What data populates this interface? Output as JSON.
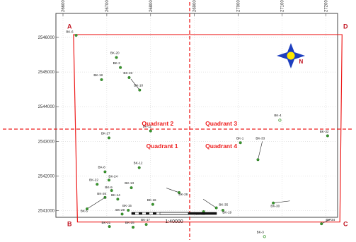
{
  "colors": {
    "boundary": "#ee1c1c",
    "well": "#3a9a2e",
    "frame": "#444444",
    "compass_blue": "#1e3fbf",
    "compass_yellow": "#ffe800"
  },
  "map": {
    "x_ticks": [
      {
        "value": 266000,
        "label": "266000"
      },
      {
        "value": 267000,
        "label": "267000"
      },
      {
        "value": 268000,
        "label": "268000"
      },
      {
        "value": 269000,
        "label": "269000"
      },
      {
        "value": 270000,
        "label": "270000"
      },
      {
        "value": 271000,
        "label": "271000"
      },
      {
        "value": 272000,
        "label": "272000"
      }
    ],
    "y_ticks": [
      {
        "value": 2541000,
        "label": "2541000"
      },
      {
        "value": 2542000,
        "label": "2542000"
      },
      {
        "value": 2543000,
        "label": "2543000"
      },
      {
        "value": 2544000,
        "label": "2544000"
      },
      {
        "value": 2545000,
        "label": "2545000"
      },
      {
        "value": 2546000,
        "label": "2546000"
      }
    ],
    "corners": [
      {
        "label": "A",
        "x": 266150,
        "y": 2546250
      },
      {
        "label": "B",
        "x": 266150,
        "y": 2540550
      },
      {
        "label": "C",
        "x": 272450,
        "y": 2540550
      },
      {
        "label": "D",
        "x": 272450,
        "y": 2546250
      }
    ],
    "boundary": [
      [
        266240,
        2546080
      ],
      [
        272370,
        2546080
      ],
      [
        272320,
        2540670
      ],
      [
        266330,
        2540670
      ]
    ],
    "quadrants": [
      {
        "label": "Quadrant 2",
        "x": 267800,
        "y": 2543450
      },
      {
        "label": "Quadrant 3",
        "x": 269250,
        "y": 2543450
      },
      {
        "label": "Quadrant 1",
        "x": 267900,
        "y": 2542800
      },
      {
        "label": "Quadrant 4",
        "x": 269250,
        "y": 2542800
      }
    ],
    "compass": {
      "label": "N",
      "x": 271450,
      "y": 2545250
    },
    "scale_label": "1:40000",
    "wells": [
      {
        "label": "BK-6",
        "x": 266300,
        "y": 2546060,
        "lx": 266070,
        "ly": 2546130
      },
      {
        "label": "BK-20",
        "x": 267220,
        "y": 2545420,
        "lx": 267080,
        "ly": 2545520
      },
      {
        "label": "BK-2",
        "x": 267310,
        "y": 2545130,
        "lx": 267140,
        "ly": 2545230
      },
      {
        "label": "BK-23",
        "x": 267510,
        "y": 2544840,
        "lx": 267380,
        "ly": 2544940
      },
      {
        "label": "BK-18",
        "x": 266880,
        "y": 2544780,
        "lx": 266700,
        "ly": 2544880
      },
      {
        "label": "BK-10",
        "x": 267750,
        "y": 2544480,
        "lx": 267620,
        "ly": 2544580,
        "line": [
          267550,
          2544800
        ]
      },
      {
        "label": "BK-11",
        "x": 268000,
        "y": 2543300,
        "lx": 267820,
        "ly": 2543400
      },
      {
        "label": "BK-27",
        "x": 267050,
        "y": 2543100,
        "lx": 266870,
        "ly": 2543200
      },
      {
        "label": "BK-4",
        "x": 270950,
        "y": 2543610,
        "lx": 270820,
        "ly": 2543720,
        "hollow": true
      },
      {
        "label": "BK-32",
        "x": 272040,
        "y": 2543160,
        "lx": 271860,
        "ly": 2543250
      },
      {
        "label": "BK-1",
        "x": 270050,
        "y": 2542960,
        "lx": 269960,
        "ly": 2543060
      },
      {
        "label": "BK-33",
        "x": 270450,
        "y": 2542470,
        "lx": 270400,
        "ly": 2543060,
        "line": [
          270550,
          2543000
        ]
      },
      {
        "label": "BK-8",
        "x": 266960,
        "y": 2542120,
        "lx": 266800,
        "ly": 2542220
      },
      {
        "label": "BK-24",
        "x": 267050,
        "y": 2541880,
        "lx": 267040,
        "ly": 2541960
      },
      {
        "label": "BK-22",
        "x": 266780,
        "y": 2541760,
        "lx": 266600,
        "ly": 2541860
      },
      {
        "label": "BK-9",
        "x": 267110,
        "y": 2541580,
        "lx": 266960,
        "ly": 2541640
      },
      {
        "label": "BK-13",
        "x": 267560,
        "y": 2541660,
        "lx": 267410,
        "ly": 2541760
      },
      {
        "label": "BK-12",
        "x": 267740,
        "y": 2542240,
        "lx": 267610,
        "ly": 2542340
      },
      {
        "label": "BK-26",
        "x": 266960,
        "y": 2541380,
        "lx": 266780,
        "ly": 2541460
      },
      {
        "label": "BK-14",
        "x": 267250,
        "y": 2541330,
        "lx": 267100,
        "ly": 2541420
      },
      {
        "label": "BK-16",
        "x": 268050,
        "y": 2541180,
        "lx": 267920,
        "ly": 2541270
      },
      {
        "label": "BK-28",
        "x": 268650,
        "y": 2541520,
        "lx": 268640,
        "ly": 2541440,
        "line": [
          268360,
          2541650
        ]
      },
      {
        "label": "BK-5",
        "x": 266550,
        "y": 2541050,
        "lx": 266400,
        "ly": 2540960,
        "line": [
          266960,
          2541380
        ]
      },
      {
        "label": "BK-29",
        "x": 267350,
        "y": 2540900,
        "lx": 267200,
        "ly": 2540990
      },
      {
        "label": "BK-15",
        "x": 267490,
        "y": 2541010,
        "lx": 267360,
        "ly": 2541110
      },
      {
        "label": "BK-17",
        "x": 267900,
        "y": 2540600,
        "lx": 267780,
        "ly": 2540700
      },
      {
        "label": "BK-21",
        "x": 267060,
        "y": 2540540,
        "lx": 266880,
        "ly": 2540620
      },
      {
        "label": "BK-25",
        "x": 267600,
        "y": 2540520,
        "lx": 267420,
        "ly": 2540620
      },
      {
        "label": "BK-35",
        "x": 269500,
        "y": 2541080,
        "lx": 269560,
        "ly": 2541140,
        "line": [
          269200,
          2541330
        ]
      },
      {
        "label": "BK-31",
        "x": 269210,
        "y": 2540970,
        "lx": 269030,
        "ly": 2540880
      },
      {
        "label": "BK-19",
        "x": 269650,
        "y": 2541010,
        "lx": 269640,
        "ly": 2540920
      },
      {
        "label": "BK-30",
        "x": 270800,
        "y": 2541220,
        "lx": 270740,
        "ly": 2541100,
        "line": [
          271180,
          2541280
        ]
      },
      {
        "label": "BK-34",
        "x": 271900,
        "y": 2540620,
        "lx": 272000,
        "ly": 2540700,
        "line": [
          272120,
          2540760
        ]
      },
      {
        "label": "BK-3",
        "x": 270600,
        "y": 2540250,
        "lx": 270420,
        "ly": 2540350,
        "hollow": true
      }
    ]
  }
}
